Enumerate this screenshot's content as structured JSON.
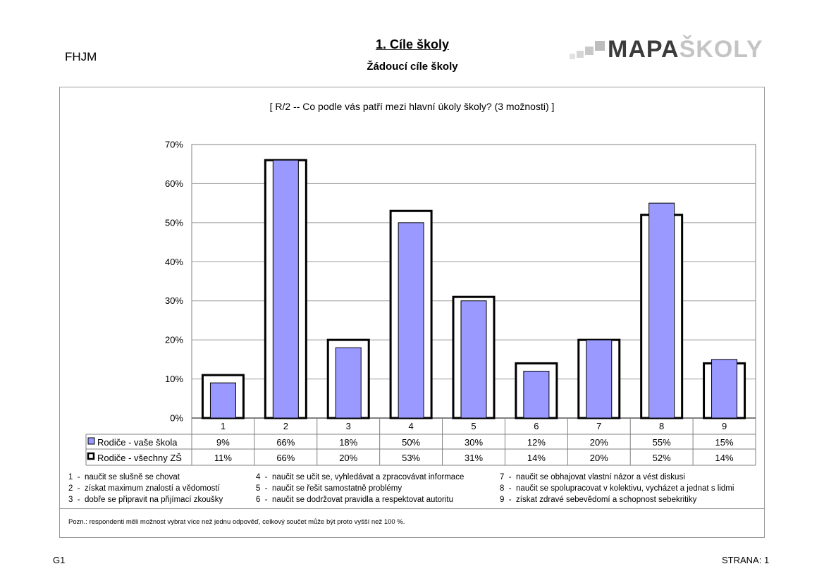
{
  "header": {
    "school_code": "FHJM",
    "title": "1. Cíle školy",
    "subtitle": "Žádoucí cíle školy",
    "logo_text_dark": "MAPA",
    "logo_text_light": "ŠKOLY"
  },
  "question": "[ R/2 -- Co podle vás patří mezi hlavní úkoly školy? (3 možnosti) ]",
  "chart_data": {
    "type": "bar",
    "categories": [
      "1",
      "2",
      "3",
      "4",
      "5",
      "6",
      "7",
      "8",
      "9"
    ],
    "series": [
      {
        "name": "Rodiče - vaše škola",
        "values": [
          9,
          66,
          18,
          50,
          30,
          12,
          20,
          55,
          15
        ],
        "labels": [
          "9%",
          "66%",
          "18%",
          "50%",
          "30%",
          "12%",
          "20%",
          "55%",
          "15%"
        ],
        "color": "#9999ff"
      },
      {
        "name": "Rodiče - všechny ZŠ",
        "values": [
          11,
          66,
          20,
          53,
          31,
          14,
          20,
          52,
          14
        ],
        "labels": [
          "11%",
          "66%",
          "20%",
          "53%",
          "31%",
          "14%",
          "20%",
          "52%",
          "14%"
        ],
        "color": "#ffffff"
      }
    ],
    "y_ticks": [
      "0%",
      "10%",
      "20%",
      "30%",
      "40%",
      "50%",
      "60%",
      "70%"
    ],
    "ylim": [
      0,
      70
    ],
    "grid": true,
    "data_table": true
  },
  "legend_items": [
    {
      "num": "1",
      "text": "naučit se slušně se chovat"
    },
    {
      "num": "2",
      "text": "získat maximum znalostí a vědomostí"
    },
    {
      "num": "3",
      "text": "dobře se připravit na přijímací zkoušky"
    },
    {
      "num": "4",
      "text": "naučit se učit se, vyhledávat a zpracovávat informace"
    },
    {
      "num": "5",
      "text": "naučit se řešit samostatně problémy"
    },
    {
      "num": "6",
      "text": "naučit se dodržovat pravidla a respektovat autoritu"
    },
    {
      "num": "7",
      "text": "naučit se obhajovat vlastní názor a vést diskusi"
    },
    {
      "num": "8",
      "text": "naučit se spolupracovat v kolektivu, vycházet a jednat s lidmi"
    },
    {
      "num": "9",
      "text": "získat zdravé sebevědomí a schopnost sebekritiky"
    }
  ],
  "note": "Pozn.: respondenti měli možnost vybrat více než jednu odpověď, celkový součet může být proto vyšší než 100 %.",
  "footer": {
    "left": "G1",
    "right": "STRANA: 1"
  }
}
